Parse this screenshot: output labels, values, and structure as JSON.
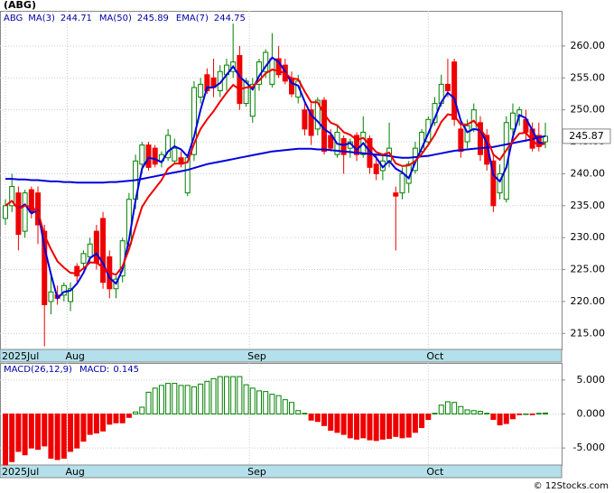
{
  "footer": "© 12Stocks.com",
  "chart_data": [
    {
      "type": "candlestick",
      "title": "(ABG)",
      "ticker": "ABG",
      "up_color": "#008000",
      "down_color": "#ee0000",
      "open": [
        233,
        235,
        237,
        231,
        237.5,
        237,
        231,
        220,
        221,
        221,
        220,
        225.5,
        226,
        227,
        231,
        233,
        227,
        222,
        224,
        229,
        236,
        241.5,
        244.5,
        244,
        242,
        242.5,
        242,
        242.5,
        237,
        243,
        252,
        255.5,
        255,
        253,
        255.5,
        256,
        258.5,
        251,
        249,
        254,
        256,
        254,
        258,
        257,
        255,
        252,
        250,
        250,
        247,
        251.5,
        246,
        243,
        245.5,
        244,
        246,
        243,
        245.5,
        241.5,
        240.5,
        242,
        237,
        237,
        238.5,
        240.5,
        243.5,
        245,
        248,
        251,
        254,
        257.5,
        247,
        245,
        247,
        248,
        246,
        242,
        237,
        236,
        247,
        249,
        248.5,
        247,
        246,
        245
      ],
      "high": [
        236,
        240,
        238,
        237.5,
        238,
        238,
        232,
        224,
        222.5,
        223,
        223,
        226,
        228,
        230,
        232,
        234,
        228,
        224,
        230,
        237,
        243,
        245,
        245,
        244.5,
        243.5,
        247,
        245.5,
        243.5,
        243,
        254.5,
        255,
        256.5,
        258,
        257,
        258,
        263.5,
        260,
        255,
        255,
        258,
        259.5,
        262,
        260,
        258,
        256,
        255.5,
        251,
        251,
        252,
        252,
        247,
        247.5,
        246,
        245.5,
        246.5,
        249,
        246,
        243,
        243,
        248,
        238,
        241,
        242,
        245,
        247,
        249,
        252,
        255.5,
        258,
        258,
        248,
        248.5,
        251,
        249,
        247,
        243,
        241.5,
        249,
        251,
        250.5,
        250,
        248,
        248,
        248
      ],
      "low": [
        232,
        234,
        228,
        230,
        233,
        229,
        213,
        218,
        219.5,
        220,
        218.5,
        223,
        225,
        226,
        225,
        222,
        220.5,
        220.5,
        223,
        228,
        234.5,
        240,
        240.5,
        241,
        241,
        242,
        241.5,
        241,
        236.5,
        242,
        251,
        252.5,
        252,
        252,
        253,
        255,
        250,
        250.5,
        248,
        253,
        255,
        253.5,
        255,
        254,
        252,
        251,
        246,
        244.5,
        246,
        243,
        243.5,
        242.5,
        240,
        242.5,
        242,
        242.5,
        240,
        239,
        239,
        241,
        228,
        236,
        237,
        240,
        243,
        244.5,
        247.5,
        250.5,
        252,
        247.5,
        242.5,
        244,
        246.5,
        242,
        240.5,
        234,
        236,
        235.5,
        246,
        247.5,
        245,
        243.5,
        243.5,
        244
      ],
      "close": [
        235,
        238,
        230.5,
        237,
        234,
        232,
        219.5,
        221.5,
        220.5,
        222.5,
        222,
        224,
        227.5,
        229,
        226,
        223,
        222,
        223.5,
        229.5,
        236,
        242,
        244.5,
        241,
        241.5,
        243,
        246,
        244,
        241.5,
        242.5,
        253.5,
        254,
        253,
        253.5,
        256,
        257,
        257.5,
        251,
        254.5,
        254,
        257.5,
        259,
        258,
        255.5,
        254.5,
        252.5,
        254.5,
        247,
        246,
        251.5,
        243.5,
        244,
        246.5,
        243,
        245,
        243,
        246.5,
        241,
        240,
        242,
        244,
        236.5,
        240,
        241.5,
        244,
        246.5,
        248.5,
        251,
        254,
        253,
        248.5,
        243.5,
        247.5,
        250,
        243,
        241.5,
        235,
        240,
        248,
        249.5,
        250,
        246.5,
        244,
        244.25,
        245.87
      ],
      "series": [
        {
          "name": "MA(3)",
          "color": "#0000dd",
          "values": [
            null,
            null,
            234.5,
            235.2,
            233.8,
            234.3,
            228.5,
            224.3,
            220.5,
            221.5,
            221.7,
            222.8,
            224.5,
            226.8,
            227.5,
            226,
            223.7,
            222.8,
            225,
            229.7,
            235.8,
            240.8,
            242.5,
            242.3,
            241.8,
            243.5,
            244.3,
            243.8,
            242.7,
            245.8,
            250,
            253.5,
            253.5,
            254.2,
            255.5,
            256.8,
            255.2,
            254.3,
            253.2,
            255.3,
            256.8,
            258.2,
            257.5,
            256,
            254.2,
            253.8,
            251.3,
            249.2,
            248.2,
            247,
            246.3,
            244.7,
            244.5,
            244.8,
            243.7,
            244.8,
            243.5,
            242.5,
            241,
            242,
            240.8,
            240.2,
            239.3,
            241.8,
            244,
            246.3,
            248.7,
            251.2,
            252.7,
            251.8,
            248.3,
            246.5,
            247,
            246.8,
            244.8,
            239.8,
            238.8,
            241,
            245.8,
            249.2,
            248.7,
            246.8,
            244.9,
            244.71
          ]
        },
        {
          "name": "MA(50)",
          "color": "#0000dd",
          "values": [
            239.2,
            239.2,
            239.1,
            239.1,
            239,
            239,
            238.9,
            238.8,
            238.8,
            238.7,
            238.7,
            238.6,
            238.6,
            238.6,
            238.6,
            238.6,
            238.7,
            238.7,
            238.8,
            238.9,
            239,
            239.2,
            239.4,
            239.6,
            239.8,
            240,
            240.2,
            240.4,
            240.6,
            240.9,
            241.2,
            241.5,
            241.7,
            241.9,
            242.1,
            242.3,
            242.5,
            242.7,
            242.9,
            243.1,
            243.3,
            243.5,
            243.6,
            243.7,
            243.8,
            243.9,
            243.9,
            243.9,
            243.8,
            243.8,
            243.7,
            243.6,
            243.5,
            243.4,
            243.3,
            243.2,
            243.1,
            243,
            242.9,
            242.8,
            242.6,
            242.5,
            242.5,
            242.6,
            242.7,
            242.8,
            243,
            243.2,
            243.4,
            243.6,
            243.7,
            243.8,
            243.9,
            244,
            244.1,
            244.2,
            244.4,
            244.6,
            244.8,
            245,
            245.2,
            245.4,
            245.7,
            245.89
          ]
        },
        {
          "name": "EMA(7)",
          "color": "#ee0000",
          "values": [
            235,
            235.75,
            234.4,
            235,
            234.8,
            234.1,
            230.4,
            228.2,
            226.3,
            225.3,
            224.5,
            224.4,
            225.2,
            226.1,
            226.1,
            225.3,
            224.5,
            224.2,
            225.5,
            228.2,
            231.6,
            234.8,
            236.4,
            237.7,
            239,
            240.8,
            241.6,
            241.6,
            241.8,
            244.7,
            247,
            248.5,
            249.8,
            251.3,
            252.7,
            253.9,
            253.2,
            253.5,
            253.6,
            254.6,
            255.7,
            256.3,
            256.1,
            255.7,
            254.9,
            254.8,
            252.9,
            251.2,
            251.2,
            249.3,
            248,
            247.6,
            246.5,
            246.1,
            245.3,
            245.6,
            244.5,
            243.4,
            243,
            243.3,
            241.6,
            241.2,
            241.3,
            242,
            243.1,
            244.5,
            246.1,
            248.1,
            249.3,
            249.1,
            247.7,
            247.7,
            248.3,
            247,
            245.6,
            243,
            242.2,
            243.7,
            245.1,
            246.3,
            246.4,
            245.2,
            244.4,
            244.75
          ]
        }
      ],
      "ylim": [
        212.5,
        265.5
      ],
      "yticks": [
        {
          "value": 215,
          "label": "215.00"
        },
        {
          "value": 220,
          "label": "220.00"
        },
        {
          "value": 225,
          "label": "225.00"
        },
        {
          "value": 230,
          "label": "230.00"
        },
        {
          "value": 235,
          "label": "235.00"
        },
        {
          "value": 240,
          "label": "240.00"
        },
        {
          "value": 245,
          "label": "245.00"
        },
        {
          "value": 250,
          "label": "250.00"
        },
        {
          "value": 255,
          "label": "255.00"
        },
        {
          "value": 260,
          "label": "260.00"
        }
      ],
      "xlim": [
        0,
        83
      ],
      "xticks": [
        {
          "value": 0,
          "label": "2025Jul"
        },
        {
          "value": 9.5,
          "label": "Aug"
        },
        {
          "value": 37.5,
          "label": "Sep"
        },
        {
          "value": 65,
          "label": "Oct"
        }
      ],
      "grid": true
    },
    {
      "type": "bar",
      "title": "MACD(26,12,9)",
      "value_name": "MACD:",
      "up_color": "#008000",
      "down_color": "#ee0000",
      "values": [
        -7.5,
        -7,
        -5.5,
        -6,
        -5,
        -5.2,
        -4.7,
        -6.5,
        -6.7,
        -6.5,
        -5.5,
        -5,
        -4,
        -3,
        -2.8,
        -2.5,
        -1.5,
        -1.3,
        -1.3,
        -0.5,
        0.3,
        1,
        3.2,
        3.8,
        4.2,
        4.5,
        4.5,
        4.2,
        4.2,
        4,
        4.4,
        4.8,
        5.2,
        5.5,
        5.5,
        5.5,
        5.5,
        4.3,
        3.8,
        3.4,
        3.3,
        2.9,
        2.7,
        2.1,
        1.7,
        0.5,
        0.1,
        -0.9,
        -1.1,
        -1.7,
        -2.4,
        -2.7,
        -3,
        -3.5,
        -3.7,
        -3.5,
        -3.8,
        -3.9,
        -3.7,
        -3.6,
        -3.3,
        -3.5,
        -3.4,
        -2.7,
        -2,
        -0.8,
        0.1,
        1.3,
        1.8,
        1.7,
        1.1,
        0.6,
        0.5,
        0.4,
        0.1,
        -0.8,
        -1.6,
        -1.4,
        -0.7,
        -0.1,
        0,
        -0.1,
        0.1,
        0.145
      ],
      "ylim": [
        -7.5,
        7.5
      ],
      "yticks": [
        {
          "value": 5,
          "label": "5.000"
        },
        {
          "value": 0,
          "label": "0.000"
        },
        {
          "value": -5,
          "label": "-5.000"
        }
      ],
      "xlim": [
        0,
        83
      ],
      "xticks": [
        {
          "value": 0,
          "label": "2025Jul"
        },
        {
          "value": 9.5,
          "label": "Aug"
        },
        {
          "value": 37.5,
          "label": "Sep"
        },
        {
          "value": 65,
          "label": "Oct"
        }
      ],
      "grid": true
    }
  ]
}
